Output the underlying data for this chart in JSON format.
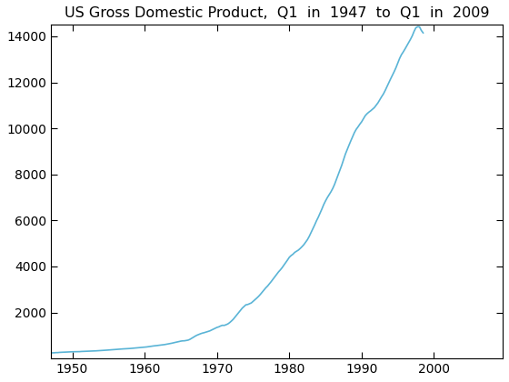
{
  "title": "US Gross Domestic Product,  Q1  in  1947  to  Q1  in  2009",
  "line_color": "#5ab4d6",
  "background_color": "#ffffff",
  "xlim": [
    1947.0,
    2009.5
  ],
  "ylim": [
    0,
    14500
  ],
  "xticks": [
    1950,
    1960,
    1970,
    1980,
    1990,
    2000
  ],
  "yticks": [
    2000,
    4000,
    6000,
    8000,
    10000,
    12000,
    14000
  ],
  "linewidth": 1.2,
  "title_fontsize": 11.5,
  "gdp_data": [
    244.2,
    246.8,
    250.0,
    257.6,
    258.3,
    267.2,
    271.6,
    273.4,
    278.6,
    280.6,
    285.2,
    289.5,
    293.7,
    294.8,
    296.8,
    298.1,
    300.2,
    306.9,
    308.5,
    313.5,
    316.2,
    319.9,
    323.3,
    325.8,
    329.0,
    333.2,
    337.7,
    340.1,
    345.0,
    351.9,
    357.1,
    364.1,
    370.6,
    378.0,
    386.4,
    393.0,
    396.9,
    401.1,
    408.4,
    414.3,
    418.3,
    422.3,
    427.5,
    430.4,
    436.7,
    443.6,
    450.4,
    456.3,
    461.5,
    469.0,
    474.8,
    482.7,
    491.5,
    502.4,
    514.2,
    524.9,
    535.8,
    547.9,
    555.0,
    565.7,
    574.5,
    583.9,
    596.5,
    605.6,
    619.4,
    633.3,
    649.6,
    665.0,
    684.9,
    702.3,
    718.1,
    737.4,
    756.4,
    767.6,
    770.7,
    786.3,
    799.0,
    832.0,
    877.3,
    926.6,
    975.4,
    1016.3,
    1047.9,
    1079.9,
    1106.1,
    1125.4,
    1151.4,
    1176.9,
    1199.8,
    1237.3,
    1274.0,
    1316.2,
    1352.3,
    1376.7,
    1415.2,
    1444.3,
    1438.8,
    1468.5,
    1503.0,
    1559.8,
    1629.4,
    1706.0,
    1802.0,
    1895.8,
    1990.9,
    2094.8,
    2191.5,
    2265.6,
    2334.6,
    2347.3,
    2383.0,
    2416.5,
    2484.9,
    2559.0,
    2625.7,
    2701.0,
    2788.1,
    2882.7,
    2979.0,
    3073.0,
    3151.2,
    3244.8,
    3345.0,
    3447.2,
    3547.7,
    3644.9,
    3760.8,
    3847.7,
    3945.1,
    4054.8,
    4165.5,
    4279.9,
    4398.9,
    4474.6,
    4530.7,
    4612.3,
    4664.1,
    4710.8,
    4780.3,
    4858.7,
    4943.6,
    5056.4,
    5162.7,
    5305.3,
    5467.6,
    5628.5,
    5800.3,
    5980.3,
    6136.7,
    6313.3,
    6492.8,
    6684.7,
    6844.7,
    6988.7,
    7112.2,
    7240.7,
    7387.4,
    7560.9,
    7770.6,
    7985.7,
    8197.7,
    8399.9,
    8634.6,
    8879.2,
    9079.0,
    9268.4,
    9456.5,
    9631.6,
    9817.0,
    9959.3,
    10065.5,
    10182.5,
    10286.6,
    10416.9,
    10552.1,
    10638.3,
    10706.0,
    10764.0,
    10829.4,
    10900.4,
    11006.5,
    11106.7,
    11239.4,
    11370.7,
    11490.6,
    11643.0,
    11812.9,
    11988.8,
    12147.0,
    12305.8,
    12466.7,
    12641.3,
    12840.5,
    13040.0,
    13201.4,
    13321.0,
    13452.2,
    13592.1,
    13727.9,
    13868.0,
    14021.9,
    14215.4,
    14374.2,
    14416.5,
    14412.6,
    14256.3,
    14149.6
  ]
}
